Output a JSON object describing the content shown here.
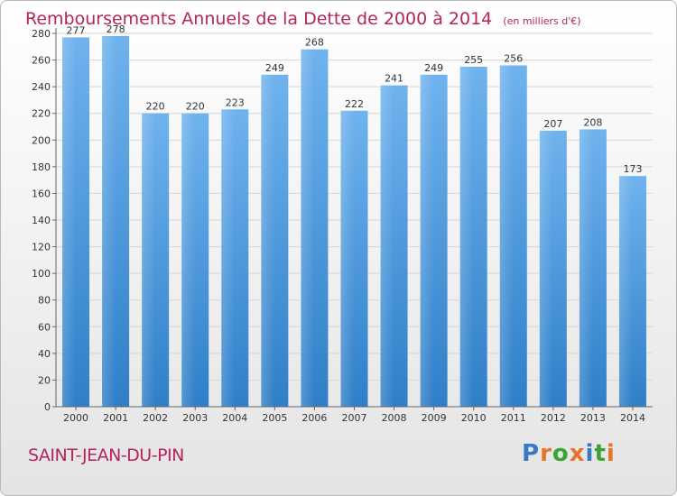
{
  "title": "Remboursements Annuels de la Dette de 2000 à 2014",
  "subtitle": "(en milliers d'€)",
  "commune": "SAINT-JEAN-DU-PIN",
  "logo": {
    "letters": [
      "P",
      "r",
      "o",
      "x",
      "i",
      "t",
      "i"
    ],
    "colors": [
      "#3a78c2",
      "#e8742a",
      "#3aa535",
      "#e8742a",
      "#3a78c2",
      "#3aa535",
      "#e8742a"
    ]
  },
  "colors": {
    "bar_light": "#6fb3ee",
    "bar_dark": "#2f7fc8",
    "grid": "#d5d5d5",
    "title": "#b5245c"
  },
  "chart_data": {
    "type": "bar",
    "title": "Remboursements Annuels de la Dette de 2000 à 2014",
    "subtitle": "(en milliers d'€)",
    "categories": [
      "2000",
      "2001",
      "2002",
      "2003",
      "2004",
      "2005",
      "2006",
      "2007",
      "2008",
      "2009",
      "2010",
      "2011",
      "2012",
      "2013",
      "2014"
    ],
    "values": [
      277,
      278,
      220,
      220,
      223,
      249,
      268,
      222,
      241,
      249,
      255,
      256,
      207,
      208,
      173
    ],
    "xlabel": "",
    "ylabel": "",
    "ylim": [
      0,
      280
    ],
    "yticks": [
      0,
      20,
      40,
      60,
      80,
      100,
      120,
      140,
      160,
      180,
      200,
      220,
      240,
      260,
      280
    ],
    "grid": true,
    "legend": "none"
  }
}
